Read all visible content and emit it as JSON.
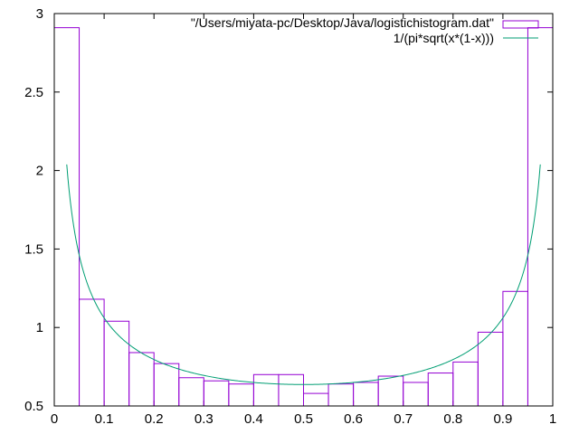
{
  "chart_data": {
    "type": "bar",
    "title": "",
    "xlabel": "",
    "ylabel": "",
    "xlim": [
      0,
      1
    ],
    "ylim": [
      0.5,
      3
    ],
    "x_ticks": [
      "0",
      "0.1",
      "0.2",
      "0.3",
      "0.4",
      "0.5",
      "0.6",
      "0.7",
      "0.8",
      "0.9",
      "1"
    ],
    "x_tick_values": [
      0,
      0.1,
      0.2,
      0.3,
      0.4,
      0.5,
      0.6,
      0.7,
      0.8,
      0.9,
      1
    ],
    "y_ticks": [
      "0.5",
      "1",
      "1.5",
      "2",
      "2.5",
      "3"
    ],
    "y_tick_values": [
      0.5,
      1,
      1.5,
      2,
      2.5,
      3
    ],
    "legend_position": "top-right",
    "series": [
      {
        "name": "\"/Users/miyata-pc/Desktop/Java/logistichistogram.dat\"",
        "style": "histogram-steps",
        "color": "#9400d3",
        "bin_edges": [
          0,
          0.05,
          0.1,
          0.15,
          0.2,
          0.25,
          0.3,
          0.35,
          0.4,
          0.45,
          0.5,
          0.55,
          0.6,
          0.65,
          0.7,
          0.75,
          0.8,
          0.85,
          0.9,
          0.95,
          1.0
        ],
        "values": [
          2.91,
          1.18,
          1.04,
          0.84,
          0.77,
          0.68,
          0.66,
          0.64,
          0.7,
          0.7,
          0.58,
          0.64,
          0.65,
          0.69,
          0.65,
          0.71,
          0.78,
          0.97,
          1.23,
          2.91
        ]
      },
      {
        "name": "1/(pi*sqrt(x*(1-x)))",
        "style": "line",
        "color": "#009e73",
        "function": "1/(pi*sqrt(x*(1-x)))",
        "domain": [
          0.025,
          0.975
        ]
      }
    ]
  }
}
